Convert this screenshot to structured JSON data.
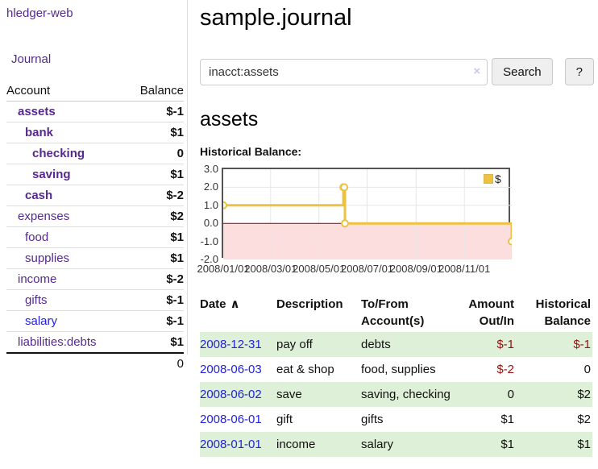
{
  "app": {
    "title": "hledger-web",
    "nav_journal": "Journal"
  },
  "colors": {
    "link_purple": "#552a8e",
    "link_blue": "#2222dd",
    "negative_strong": "#991111",
    "negative_muted": "#c08383",
    "row_stripe_green": "#dff0d8",
    "chart_line_yellow": "#edc240",
    "chart_negative_fill": "#fcdede",
    "chart_zero_line": "#8b0000",
    "chart_border": "#545454"
  },
  "sidebar": {
    "header": {
      "account": "Account",
      "balance": "Balance"
    },
    "accounts": [
      {
        "name": "assets",
        "depth": 1,
        "bold": true,
        "balance": "$-1",
        "neg": "strong"
      },
      {
        "name": "bank",
        "depth": 2,
        "bold": true,
        "balance": "$1",
        "neg": "none"
      },
      {
        "name": "checking",
        "depth": 3,
        "bold": true,
        "balance": "0",
        "neg": "none"
      },
      {
        "name": "saving",
        "depth": 3,
        "bold": true,
        "balance": "$1",
        "neg": "none"
      },
      {
        "name": "cash",
        "depth": 2,
        "bold": true,
        "balance": "$-2",
        "neg": "strong"
      },
      {
        "name": "expenses",
        "depth": 1,
        "bold": false,
        "balance": "$2",
        "neg": "none"
      },
      {
        "name": "food",
        "depth": 2,
        "bold": false,
        "balance": "$1",
        "neg": "none"
      },
      {
        "name": "supplies",
        "depth": 2,
        "bold": false,
        "balance": "$1",
        "neg": "none"
      },
      {
        "name": "income",
        "depth": 1,
        "bold": false,
        "balance": "$-2",
        "neg": "muted"
      },
      {
        "name": "gifts",
        "depth": 2,
        "bold": false,
        "balance": "$-1",
        "neg": "muted"
      },
      {
        "name": "salary",
        "depth": 2,
        "bold": false,
        "balance": "$-1",
        "neg": "muted",
        "link": "blue"
      },
      {
        "name": "liabilities:debts",
        "depth": 1,
        "bold": false,
        "balance": "$1",
        "neg": "none"
      }
    ],
    "total": "0"
  },
  "header": {
    "title": "sample.journal"
  },
  "search": {
    "value": "inacct:assets",
    "clear_icon": "×",
    "button": "Search",
    "help_button": "?"
  },
  "account_page": {
    "title": "assets",
    "chart_label": "Historical Balance:"
  },
  "chart_data": {
    "type": "line",
    "step": true,
    "title": "Historical Balance",
    "series": [
      {
        "name": "$",
        "points": [
          [
            "2008-01-01",
            1
          ],
          [
            "2008-06-01",
            2
          ],
          [
            "2008-06-02",
            2
          ],
          [
            "2008-06-03",
            0
          ],
          [
            "2008-12-31",
            -1
          ]
        ]
      }
    ],
    "xlim": [
      "2008-01-01",
      "2008-12-31"
    ],
    "ylim": [
      -2,
      3
    ],
    "yticks": [
      3,
      2,
      1,
      0,
      -1,
      -2
    ],
    "ytick_labels": [
      "3.0",
      "2.0",
      "1.0",
      "0.0",
      "-1.0",
      "-2.0"
    ],
    "xticks": [
      "2008-01-01",
      "2008-03-01",
      "2008-05-01",
      "2008-07-01",
      "2008-09-01",
      "2008-11-01"
    ],
    "xtick_labels": [
      "2008/01/01",
      "2008/03/01",
      "2008/05/01",
      "2008/07/01",
      "2008/09/01",
      "2008/11/01"
    ],
    "legend": {
      "label": "$",
      "position": "top-right"
    },
    "grid": true,
    "negative_region_shaded": true
  },
  "register": {
    "sort_icon": "∧",
    "columns": [
      "Date",
      "Description",
      "To/From Account(s)",
      "Amount Out/In",
      "Historical Balance"
    ],
    "rows": [
      {
        "date": "2008-12-31",
        "description": "pay off",
        "accounts": "debts",
        "amount": "$-1",
        "amount_negative": true,
        "balance": "$-1",
        "balance_negative": true,
        "shaded": true
      },
      {
        "date": "2008-06-03",
        "description": "eat & shop",
        "accounts": "food, supplies",
        "amount": "$-2",
        "amount_negative": true,
        "balance": "0",
        "balance_negative": false,
        "shaded": false
      },
      {
        "date": "2008-06-02",
        "description": "save",
        "accounts": "saving, checking",
        "amount": "0",
        "amount_negative": false,
        "balance": "$2",
        "balance_negative": false,
        "shaded": true
      },
      {
        "date": "2008-06-01",
        "description": "gift",
        "accounts": "gifts",
        "amount": "$1",
        "amount_negative": false,
        "balance": "$2",
        "balance_negative": false,
        "shaded": false
      },
      {
        "date": "2008-01-01",
        "description": "income",
        "accounts": "salary",
        "amount": "$1",
        "amount_negative": false,
        "balance": "$1",
        "balance_negative": false,
        "shaded": true
      }
    ]
  }
}
